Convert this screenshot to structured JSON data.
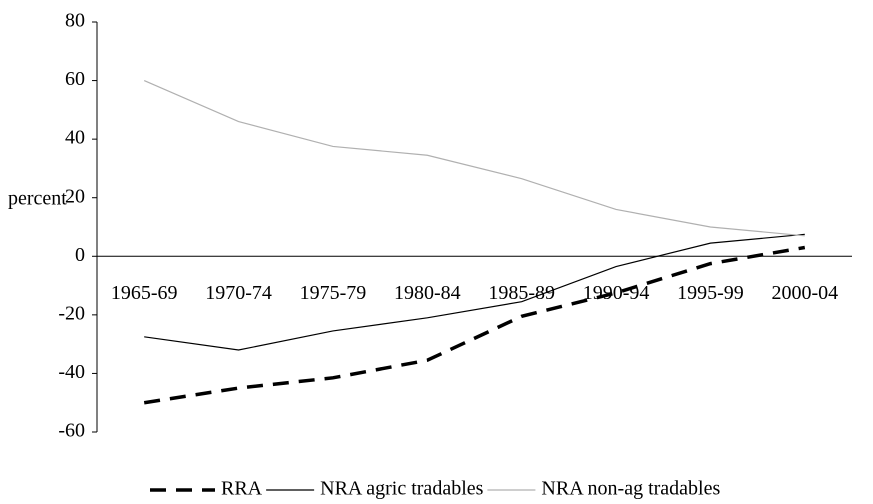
{
  "chart_data": {
    "type": "line",
    "y_label": "percent",
    "categories": [
      "1965-69",
      "1970-74",
      "1975-79",
      "1980-84",
      "1985-89",
      "1990-94",
      "1995-99",
      "2000-04"
    ],
    "series": [
      {
        "name": "RRA",
        "color": "#000000",
        "dashed": true,
        "values": [
          -50,
          -45,
          -41.5,
          -35.5,
          -20.5,
          -12.5,
          -2.5,
          3
        ]
      },
      {
        "name": "NRA agric tradables",
        "color": "#000000",
        "dashed": false,
        "values": [
          -27.5,
          -32,
          -25.5,
          -21,
          -15.5,
          -3.5,
          4.5,
          7.5
        ]
      },
      {
        "name": "NRA non-ag tradables",
        "color": "#b0b0b0",
        "dashed": false,
        "values": [
          60,
          46,
          37.5,
          34.5,
          26.5,
          16,
          10,
          7
        ]
      }
    ],
    "ylim": [
      -60,
      80
    ],
    "yticks": [
      -60,
      -40,
      -20,
      0,
      20,
      40,
      60,
      80
    ],
    "legend": "bottom"
  }
}
